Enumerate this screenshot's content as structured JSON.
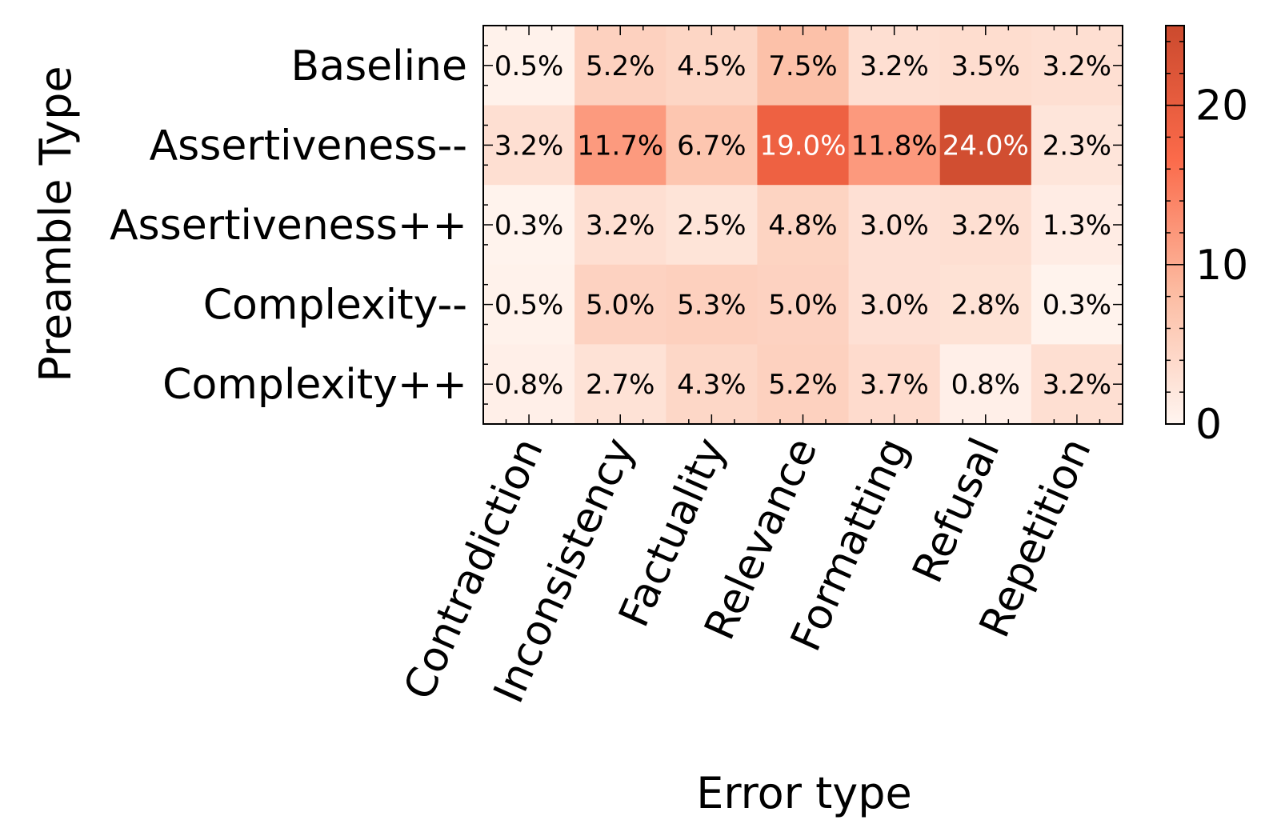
{
  "chart_data": {
    "type": "heatmap",
    "title": "",
    "xlabel": "Error type",
    "ylabel": "Preamble Type",
    "columns": [
      "Contradiction",
      "Inconsistency",
      "Factuality",
      "Relevance",
      "Formatting",
      "Refusal",
      "Repetition"
    ],
    "rows": [
      "Baseline",
      "Assertiveness--",
      "Assertiveness++",
      "Complexity--",
      "Complexity++"
    ],
    "values": [
      [
        0.5,
        5.2,
        4.5,
        7.5,
        3.2,
        3.5,
        3.2
      ],
      [
        3.2,
        11.7,
        6.7,
        19.0,
        11.8,
        24.0,
        2.3
      ],
      [
        0.3,
        3.2,
        2.5,
        4.8,
        3.0,
        3.2,
        1.3
      ],
      [
        0.5,
        5.0,
        5.3,
        5.0,
        3.0,
        2.8,
        0.3
      ],
      [
        0.8,
        2.7,
        4.3,
        5.2,
        3.7,
        0.8,
        3.2
      ]
    ],
    "cell_labels": [
      [
        "0.5%",
        "5.2%",
        "4.5%",
        "7.5%",
        "3.2%",
        "3.5%",
        "3.2%"
      ],
      [
        "3.2%",
        "11.7%",
        "6.7%",
        "19.0%",
        "11.8%",
        "24.0%",
        "2.3%"
      ],
      [
        "0.3%",
        "3.2%",
        "2.5%",
        "4.8%",
        "3.0%",
        "3.2%",
        "1.3%"
      ],
      [
        "0.5%",
        "5.0%",
        "5.3%",
        "5.0%",
        "3.0%",
        "2.8%",
        "0.3%"
      ],
      [
        "0.8%",
        "2.7%",
        "4.3%",
        "5.2%",
        "3.7%",
        "0.8%",
        "3.2%"
      ]
    ],
    "colorbar": {
      "range": [
        0,
        25
      ],
      "ticks": [
        0,
        10,
        20
      ],
      "tick_labels": [
        "0",
        "10",
        "20"
      ],
      "colormap": [
        "#fff5f0",
        "#fcbba1",
        "#fb6a4a",
        "#cb4a2e"
      ]
    },
    "grid": false
  }
}
